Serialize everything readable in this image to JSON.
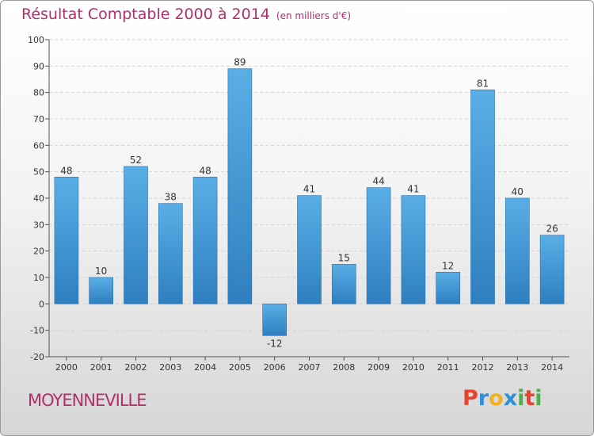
{
  "header": {
    "title": "Résultat Comptable 2000 à 2014",
    "subtitle": "(en milliers d'€)"
  },
  "footer": {
    "town": "MOYENNEVILLE",
    "logo_letters": [
      "P",
      "r",
      "o",
      "x",
      "i",
      "t",
      "i"
    ],
    "logo_colors": [
      "#e8412c",
      "#2f8fd6",
      "#f2b01e",
      "#2f8fd6",
      "#49b34a",
      "#e8412c",
      "#49b34a"
    ]
  },
  "colors": {
    "bar_top": "#5aaee6",
    "bar_bottom": "#2f7fc0",
    "axis": "#555555",
    "grid": "#d4d4d4"
  },
  "chart_data": {
    "type": "bar",
    "title": "Résultat Comptable 2000 à 2014",
    "ylabel": "en milliers d'€",
    "xlabel": "",
    "categories": [
      "2000",
      "2001",
      "2002",
      "2003",
      "2004",
      "2005",
      "2006",
      "2007",
      "2008",
      "2009",
      "2010",
      "2011",
      "2012",
      "2013",
      "2014"
    ],
    "values": [
      48,
      10,
      52,
      38,
      48,
      89,
      -12,
      41,
      15,
      44,
      41,
      12,
      81,
      40,
      26
    ],
    "ylim": [
      -20,
      100
    ],
    "yticks": [
      -20,
      -10,
      0,
      10,
      20,
      30,
      40,
      50,
      60,
      70,
      80,
      90,
      100
    ],
    "grid": true,
    "legend": "none"
  }
}
